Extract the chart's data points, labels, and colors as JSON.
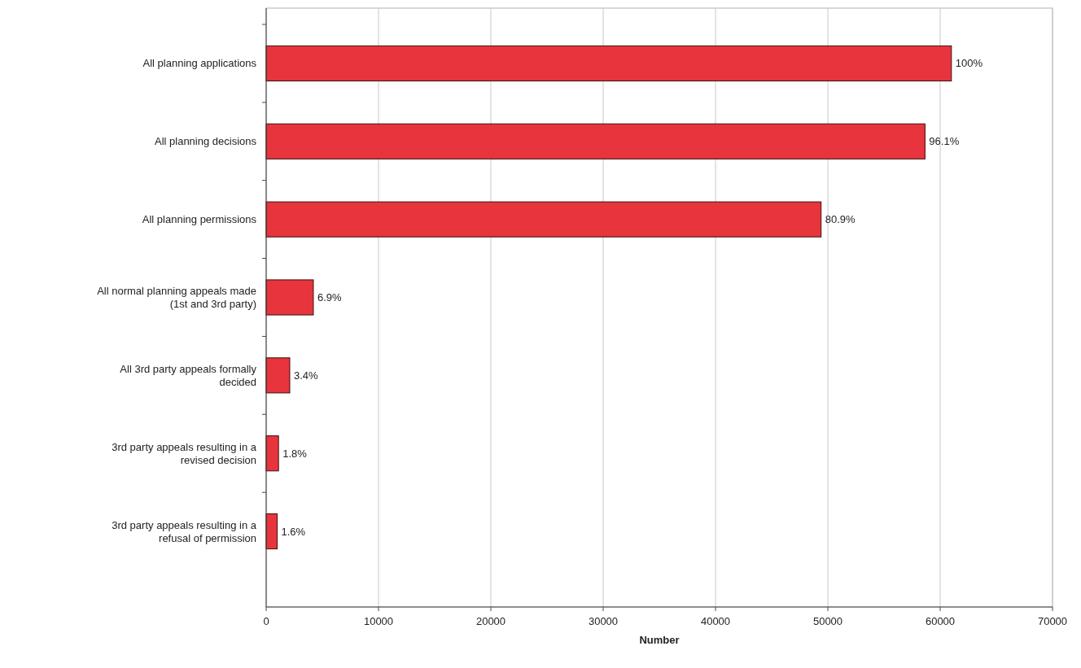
{
  "chart_data": {
    "type": "bar",
    "orientation": "horizontal",
    "xlabel": "Number",
    "categories": [
      "All planning applications",
      "All planning decisions",
      "All planning permissions",
      "All normal planning appeals made (1st and 3rd party)",
      "All 3rd party appeals formally decided",
      "3rd party appeals resulting in a revised decision",
      "3rd party appeals resulting in a refusal of permission"
    ],
    "values": [
      61000,
      58650,
      49400,
      4200,
      2100,
      1100,
      980
    ],
    "annotations": [
      {
        "text": "100%",
        "x": 61000,
        "y": "All planning applications"
      },
      {
        "text": "96.1%",
        "x": 58650,
        "y": "All planning decisions"
      },
      {
        "text": "80.9%",
        "x": 49400,
        "y": "All planning permissions"
      },
      {
        "text": "6.9%",
        "x": 4200,
        "y": "All normal planning appeals made (1st and 3rd party)"
      },
      {
        "text": "3.4%",
        "x": 2100,
        "y": "All 3rd party appeals formally decided"
      },
      {
        "text": "1.8%",
        "x": 1100,
        "y": "3rd party appeals resulting in a revised decision"
      },
      {
        "text": "1.6%",
        "x": 980,
        "y": "3rd party appeals resulting in a refusal of permission"
      }
    ],
    "color": "#e8343c",
    "xlim": [
      0,
      70000
    ],
    "xticks": [
      0,
      10000,
      20000,
      30000,
      40000,
      50000,
      60000,
      70000
    ],
    "grid": "x"
  }
}
